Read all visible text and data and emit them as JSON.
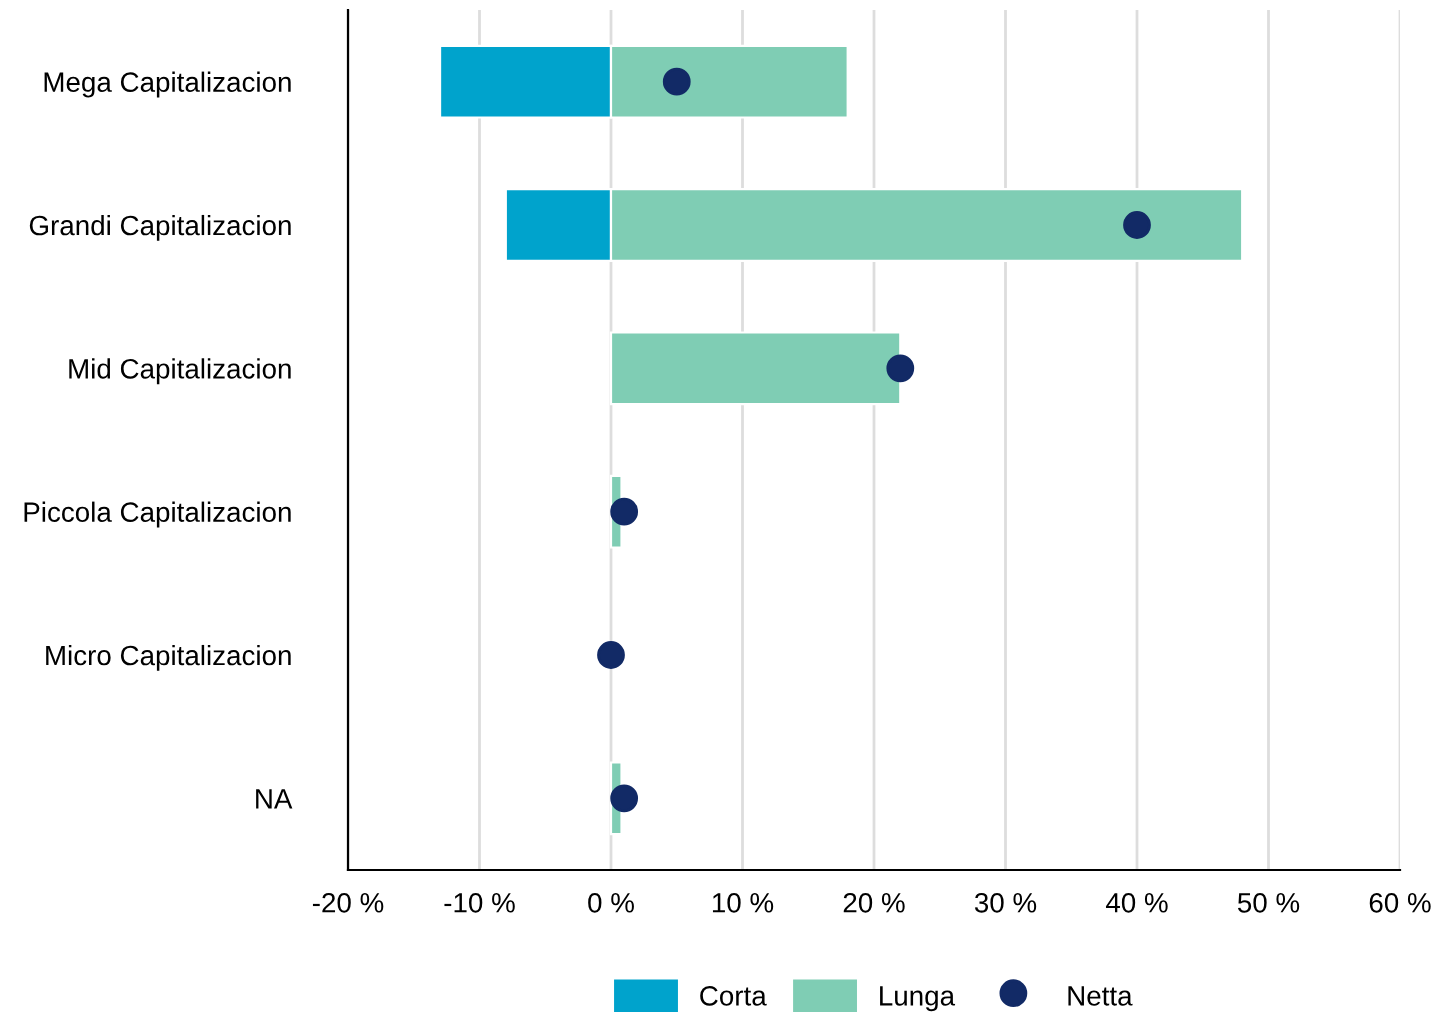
{
  "chart_data": {
    "type": "bar",
    "orientation": "horizontal",
    "categories": [
      "Mega Capitalizacion",
      "Grandi Capitalizacion",
      "Mid Capitalizacion",
      "Piccola Capitalizacion",
      "Micro Capitalizacion",
      "NA"
    ],
    "series": [
      {
        "name": "Corta",
        "color": "#00a3cc",
        "values": [
          -13,
          -8,
          null,
          null,
          null,
          null
        ]
      },
      {
        "name": "Lunga",
        "color": "#7fcdb4",
        "values": [
          18,
          48,
          22,
          0.8,
          null,
          0.8
        ]
      },
      {
        "name": "Netta",
        "type": "scatter",
        "color": "#122a66",
        "values": [
          5,
          40,
          22,
          1,
          0,
          1
        ]
      }
    ],
    "xlim": [
      -20,
      60
    ],
    "xticks": [
      {
        "value": -20,
        "label": "-20 %"
      },
      {
        "value": -10,
        "label": "-10 %"
      },
      {
        "value": 0,
        "label": "0 %"
      },
      {
        "value": 10,
        "label": "10 %"
      },
      {
        "value": 20,
        "label": "20 %"
      },
      {
        "value": 30,
        "label": "30 %"
      },
      {
        "value": 40,
        "label": "40 %"
      },
      {
        "value": 50,
        "label": "50 %"
      },
      {
        "value": 60,
        "label": "60 %"
      }
    ],
    "grid": "x",
    "legend": "bottom",
    "marker": "circle"
  }
}
